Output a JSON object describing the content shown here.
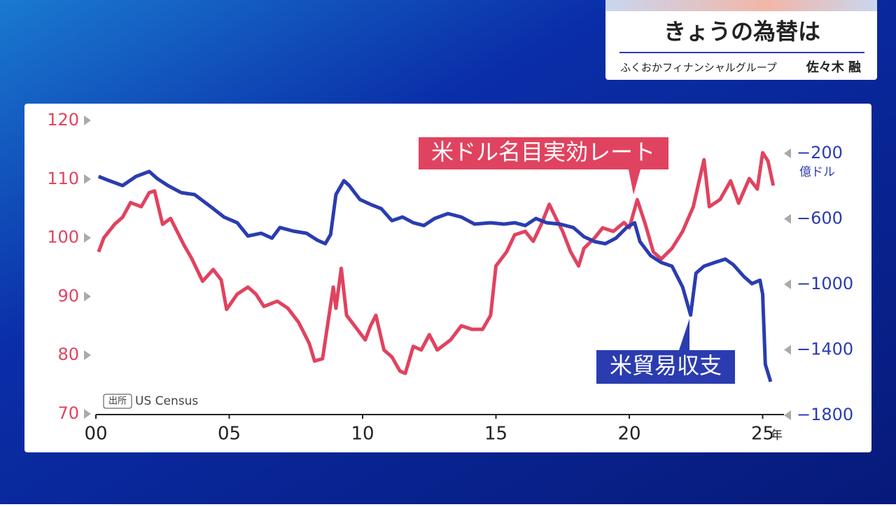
{
  "header": {
    "title": "きょうの為替は",
    "company": "ふくおかフィナンシャルグループ",
    "person": "佐々木 融"
  },
  "chart_data": {
    "type": "line",
    "source_tag": "出所",
    "source": "US Census",
    "x_unit": "年",
    "y2_unit": "億ドル",
    "xlim": [
      0,
      26
    ],
    "xticks": [
      {
        "value": 0,
        "label": "00"
      },
      {
        "value": 5,
        "label": "05"
      },
      10,
      15,
      20,
      25
    ],
    "ylim": [
      70,
      120
    ],
    "yticks": [
      70,
      80,
      90,
      100,
      110,
      120
    ],
    "y2lim": [
      -1800,
      -200
    ],
    "y2ticks": [
      {
        "value": -200,
        "label": "−200"
      },
      {
        "value": -600,
        "label": "−600"
      },
      {
        "value": -1000,
        "label": "−1000"
      },
      {
        "value": -1400,
        "label": "−1400"
      },
      {
        "value": -1800,
        "label": "−1800"
      }
    ],
    "series": [
      {
        "name": "米ドル名目実効レート",
        "color": "#e0435f",
        "axis": "y",
        "x": [
          0.1,
          0.3,
          0.7,
          1.0,
          1.3,
          1.7,
          2.0,
          2.2,
          2.5,
          2.8,
          3.3,
          3.6,
          4.0,
          4.4,
          4.7,
          4.9,
          5.3,
          5.7,
          6.0,
          6.3,
          6.8,
          7.2,
          7.6,
          8.0,
          8.2,
          8.5,
          8.9,
          9.0,
          9.2,
          9.4,
          9.8,
          10.1,
          10.3,
          10.5,
          10.8,
          11.1,
          11.4,
          11.6,
          11.9,
          12.2,
          12.5,
          12.8,
          13.3,
          13.7,
          14.1,
          14.5,
          14.8,
          15.0,
          15.4,
          15.7,
          16.1,
          16.4,
          16.7,
          17.0,
          17.3,
          17.5,
          17.8,
          18.1,
          18.3,
          18.7,
          19.0,
          19.4,
          19.8,
          20.0,
          20.3,
          20.6,
          20.9,
          21.2,
          21.6,
          22.0,
          22.4,
          22.8,
          23.0,
          23.4,
          23.8,
          24.1,
          24.5,
          24.8,
          25.0,
          25.2,
          25.4
        ],
        "values": [
          97.6,
          100,
          102.3,
          103.5,
          106,
          105.3,
          107.7,
          108,
          102.3,
          103.3,
          98.8,
          96.4,
          92.6,
          94.6,
          92.8,
          87.8,
          90.4,
          91.6,
          90.4,
          88.3,
          89.2,
          88,
          85.6,
          82,
          79,
          79.4,
          91.6,
          88,
          94.8,
          86.8,
          84.4,
          82.6,
          85,
          86.8,
          80.9,
          79.7,
          77.3,
          76.9,
          81.5,
          80.9,
          83.5,
          80.9,
          82.6,
          85,
          84.4,
          84.4,
          86.8,
          95.2,
          97.6,
          100.5,
          101.1,
          99.4,
          102.3,
          105.7,
          102.9,
          101.1,
          97.6,
          95.2,
          98.2,
          100,
          101.7,
          101.1,
          102.6,
          101.7,
          106.5,
          102.3,
          97.6,
          96.4,
          98.2,
          101.1,
          105.3,
          113.3,
          105.3,
          106.5,
          109.7,
          105.9,
          110.1,
          108.3,
          114.5,
          113.1,
          108.9
        ]
      },
      {
        "name": "米貿易収支",
        "color": "#2b3cb0",
        "axis": "y2",
        "x": [
          0.1,
          0.5,
          1.0,
          1.5,
          2.0,
          2.3,
          2.7,
          3.2,
          3.7,
          4.3,
          4.8,
          5.3,
          5.7,
          6.2,
          6.6,
          6.9,
          7.4,
          7.9,
          8.3,
          8.6,
          8.8,
          9.0,
          9.3,
          9.5,
          9.9,
          10.3,
          10.7,
          11.1,
          11.5,
          11.9,
          12.3,
          12.7,
          13.2,
          13.7,
          14.2,
          14.8,
          15.3,
          15.7,
          16.1,
          16.5,
          16.9,
          17.4,
          17.9,
          18.3,
          18.7,
          19.1,
          19.5,
          19.9,
          20.2,
          20.4,
          20.8,
          21.2,
          21.6,
          22.0,
          22.3,
          22.5,
          22.8,
          23.2,
          23.6,
          23.9,
          24.3,
          24.6,
          24.9,
          25.0,
          25.1,
          25.3
        ],
        "values": [
          -341,
          -367,
          -397,
          -341,
          -311,
          -354,
          -397,
          -440,
          -452,
          -525,
          -589,
          -624,
          -705,
          -688,
          -718,
          -653,
          -675,
          -688,
          -730,
          -752,
          -696,
          -452,
          -367,
          -397,
          -482,
          -512,
          -538,
          -611,
          -589,
          -624,
          -641,
          -598,
          -568,
          -589,
          -632,
          -624,
          -632,
          -624,
          -641,
          -598,
          -624,
          -632,
          -653,
          -709,
          -739,
          -752,
          -718,
          -653,
          -624,
          -739,
          -825,
          -867,
          -889,
          -1017,
          -1188,
          -932,
          -889,
          -867,
          -846,
          -880,
          -953,
          -996,
          -975,
          -1060,
          -1488,
          -1595
        ]
      }
    ]
  }
}
